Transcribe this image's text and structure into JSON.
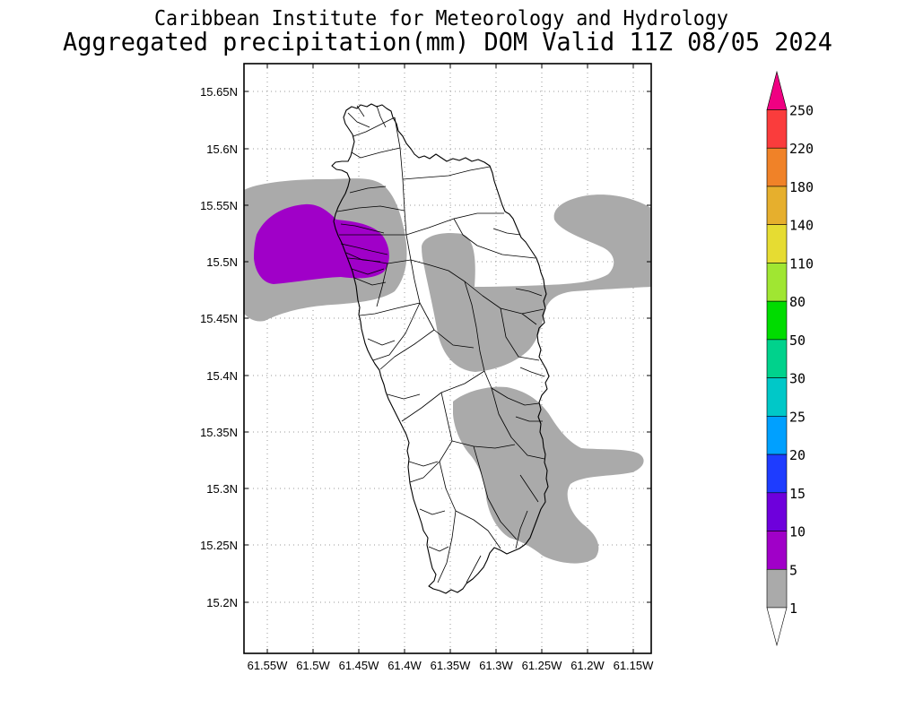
{
  "header": {
    "institute": "Caribbean Institute for Meteorology and Hydrology",
    "product": "Aggregated precipitation(mm) DOM Valid 11Z 08/05 2024"
  },
  "map": {
    "lat_ticks": [
      "15.65N",
      "15.6N",
      "15.55N",
      "15.5N",
      "15.45N",
      "15.4N",
      "15.35N",
      "15.3N",
      "15.25N",
      "15.2N"
    ],
    "lon_ticks": [
      "61.55W",
      "61.5W",
      "61.45W",
      "61.4W",
      "61.35W",
      "61.3W",
      "61.25W",
      "61.2W",
      "61.15W"
    ]
  },
  "colorbar": {
    "labels": [
      "250",
      "220",
      "180",
      "140",
      "110",
      "80",
      "50",
      "30",
      "25",
      "20",
      "15",
      "10",
      "5",
      "1"
    ],
    "above_color": "#F00082",
    "bin_colors": [
      "#FA3C3C",
      "#F08228",
      "#E6AF2D",
      "#E6DC32",
      "#A0E632",
      "#00DC00",
      "#00D28C",
      "#00C8C8",
      "#00A0FF",
      "#1E3CFF",
      "#6E00DC",
      "#A000C8",
      "#AAAAAA"
    ],
    "below_color": "#FFFFFF"
  }
}
